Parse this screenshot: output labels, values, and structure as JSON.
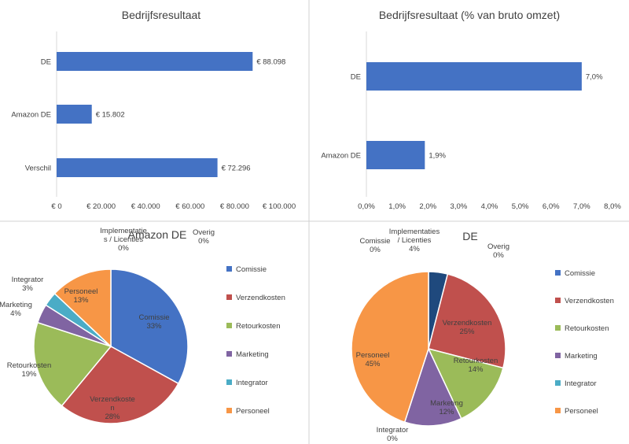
{
  "colors": {
    "bar": "#4472c4",
    "axis": "#d9d9d9",
    "divider": "#d0d0d0",
    "text": "#404040",
    "comissie": "#4472c4",
    "verzendkosten": "#c0504d",
    "retourkosten": "#9bbb59",
    "marketing": "#8064a2",
    "integrator": "#4bacc6",
    "personeel": "#f79646",
    "implementaties": "#1f497d"
  },
  "chart_data": [
    {
      "type": "bar",
      "orientation": "horizontal",
      "title": "Bedrijfsresultaat",
      "categories": [
        "DE",
        "Amazon DE",
        "Verschil"
      ],
      "values": [
        88098,
        15802,
        72296
      ],
      "data_labels": [
        "€ 88.098",
        "€ 15.802",
        "€ 72.296"
      ],
      "xlim": [
        0,
        100000
      ],
      "ticks": [
        0,
        20000,
        40000,
        60000,
        80000,
        100000
      ],
      "tick_labels": [
        "€ 0",
        "€ 20.000",
        "€ 40.000",
        "€ 60.000",
        "€ 80.000",
        "€ 100.000"
      ],
      "grid": false
    },
    {
      "type": "bar",
      "orientation": "horizontal",
      "title": "Bedrijfsresultaat (% van bruto omzet)",
      "categories": [
        "DE",
        "Amazon DE"
      ],
      "values": [
        7.0,
        1.9
      ],
      "data_labels": [
        "7,0%",
        "1,9%"
      ],
      "xlim": [
        0,
        8
      ],
      "ticks": [
        0,
        1,
        2,
        3,
        4,
        5,
        6,
        7,
        8
      ],
      "tick_labels": [
        "0,0%",
        "1,0%",
        "2,0%",
        "3,0%",
        "4,0%",
        "5,0%",
        "6,0%",
        "7,0%",
        "8,0%"
      ],
      "grid": false
    },
    {
      "type": "pie",
      "title": "Amazon DE",
      "slices": [
        {
          "label": "Comissie",
          "value": 33,
          "pct": "33%",
          "color": "comissie"
        },
        {
          "label": "Verzendkosten",
          "value": 28,
          "pct": "28%",
          "color": "verzendkosten"
        },
        {
          "label": "Retourkosten",
          "value": 19,
          "pct": "19%",
          "color": "retourkosten"
        },
        {
          "label": "Marketing",
          "value": 4,
          "pct": "4%",
          "color": "marketing"
        },
        {
          "label": "Integrator",
          "value": 3,
          "pct": "3%",
          "color": "integrator"
        },
        {
          "label": "Personeel",
          "value": 13,
          "pct": "13%",
          "color": "personeel"
        },
        {
          "label": "Implementaties / Licenties",
          "value": 0,
          "pct": "0%",
          "color": "implementaties"
        },
        {
          "label": "Overig",
          "value": 0,
          "pct": "0%",
          "color": "implementaties"
        }
      ],
      "legend": [
        "Comissie",
        "Verzendkosten",
        "Retourkosten",
        "Marketing",
        "Integrator",
        "Personeel"
      ],
      "legend_position": "right"
    },
    {
      "type": "pie",
      "title": "DE",
      "slices": [
        {
          "label": "Comissie",
          "value": 0,
          "pct": "0%",
          "color": "comissie"
        },
        {
          "label": "Implementaties / Licenties",
          "value": 4,
          "pct": "4%",
          "color": "implementaties"
        },
        {
          "label": "Overig",
          "value": 0,
          "pct": "0%",
          "color": "implementaties"
        },
        {
          "label": "Verzendkosten",
          "value": 25,
          "pct": "25%",
          "color": "verzendkosten"
        },
        {
          "label": "Retourkosten",
          "value": 14,
          "pct": "14%",
          "color": "retourkosten"
        },
        {
          "label": "Marketing",
          "value": 12,
          "pct": "12%",
          "color": "marketing"
        },
        {
          "label": "Integrator",
          "value": 0,
          "pct": "0%",
          "color": "integrator"
        },
        {
          "label": "Personeel",
          "value": 45,
          "pct": "45%",
          "color": "personeel"
        }
      ],
      "legend": [
        "Comissie",
        "Verzendkosten",
        "Retourkosten",
        "Marketing",
        "Integrator",
        "Personeel"
      ],
      "legend_position": "right"
    }
  ]
}
